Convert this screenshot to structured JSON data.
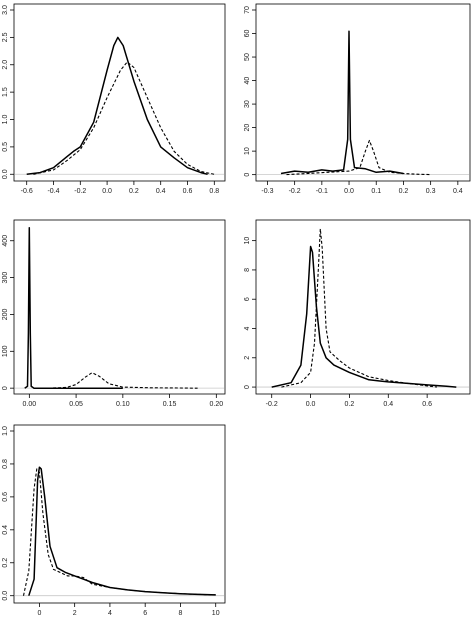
{
  "chart_data": [
    {
      "type": "line",
      "title": "",
      "xlabel": "",
      "ylabel": "",
      "xlim": [
        -0.65,
        0.85
      ],
      "ylim": [
        -0.05,
        3.0
      ],
      "xticks": [
        "-0.6",
        "-0.4",
        "-0.2",
        "0.0",
        "0.2",
        "0.4",
        "0.6",
        "0.8"
      ],
      "xtick_values": [
        -0.6,
        -0.4,
        -0.2,
        0.0,
        0.2,
        0.4,
        0.6,
        0.8
      ],
      "yticks": [
        "0.0",
        "0.5",
        "1.0",
        "1.5",
        "2.0",
        "2.5",
        "3.0"
      ],
      "ytick_values": [
        0,
        0.5,
        1.0,
        1.5,
        2.0,
        2.5,
        3.0
      ],
      "grid": false,
      "series": [
        {
          "style": "solid",
          "x": [
            -0.6,
            -0.5,
            -0.4,
            -0.3,
            -0.25,
            -0.2,
            -0.1,
            0.0,
            0.05,
            0.08,
            0.12,
            0.2,
            0.3,
            0.4,
            0.5,
            0.6,
            0.7,
            0.75
          ],
          "y": [
            0.0,
            0.03,
            0.12,
            0.32,
            0.42,
            0.5,
            0.95,
            1.9,
            2.35,
            2.5,
            2.35,
            1.7,
            1.0,
            0.5,
            0.3,
            0.12,
            0.03,
            0.0
          ]
        },
        {
          "style": "dashed",
          "x": [
            -0.55,
            -0.4,
            -0.3,
            -0.2,
            -0.1,
            0.0,
            0.1,
            0.15,
            0.2,
            0.3,
            0.4,
            0.5,
            0.6,
            0.7,
            0.8
          ],
          "y": [
            0.0,
            0.08,
            0.25,
            0.45,
            0.85,
            1.4,
            1.9,
            2.05,
            1.95,
            1.4,
            0.85,
            0.42,
            0.18,
            0.05,
            0.0
          ]
        }
      ]
    },
    {
      "type": "line",
      "title": "",
      "xlabel": "",
      "ylabel": "",
      "xlim": [
        -0.32,
        0.43
      ],
      "ylim": [
        -1,
        70
      ],
      "xticks": [
        "-0.3",
        "-0.2",
        "-0.1",
        "0.0",
        "0.1",
        "0.2",
        "0.3",
        "0.4"
      ],
      "xtick_values": [
        -0.3,
        -0.2,
        -0.1,
        0.0,
        0.1,
        0.2,
        0.3,
        0.4
      ],
      "yticks": [
        "0",
        "10",
        "20",
        "30",
        "40",
        "50",
        "60",
        "70"
      ],
      "ytick_values": [
        0,
        10,
        20,
        30,
        40,
        50,
        60,
        70
      ],
      "grid": false,
      "series": [
        {
          "style": "solid",
          "x": [
            -0.25,
            -0.2,
            -0.15,
            -0.1,
            -0.06,
            -0.02,
            -0.005,
            0.0,
            0.005,
            0.02,
            0.06,
            0.1,
            0.15,
            0.2
          ],
          "y": [
            0.5,
            1.5,
            1.0,
            2.0,
            1.5,
            2.0,
            15,
            61,
            15,
            3,
            2.5,
            1.0,
            1.5,
            0.5
          ]
        },
        {
          "style": "dashed",
          "x": [
            -0.23,
            -0.15,
            -0.08,
            0.0,
            0.04,
            0.06,
            0.075,
            0.09,
            0.11,
            0.15,
            0.2,
            0.25,
            0.3
          ],
          "y": [
            0.0,
            0.5,
            1.0,
            1.5,
            3.0,
            10,
            14.5,
            10,
            3,
            1.0,
            0.5,
            0.2,
            0.0
          ]
        }
      ]
    },
    {
      "type": "line",
      "title": "",
      "xlabel": "",
      "ylabel": "",
      "xlim": [
        -0.01,
        0.205
      ],
      "ylim": [
        -5,
        440
      ],
      "xticks": [
        "0.00",
        "0.05",
        "0.10",
        "0.15",
        "0.20"
      ],
      "xtick_values": [
        0.0,
        0.05,
        0.1,
        0.15,
        0.2
      ],
      "yticks": [
        "0",
        "100",
        "200",
        "300",
        "400"
      ],
      "ytick_values": [
        0,
        100,
        200,
        300,
        400
      ],
      "grid": false,
      "series": [
        {
          "style": "solid",
          "x": [
            -0.005,
            -0.002,
            -0.001,
            0.0,
            0.001,
            0.002,
            0.005,
            0.05,
            0.1
          ],
          "y": [
            0,
            5,
            150,
            435,
            150,
            5,
            0,
            0,
            0
          ]
        },
        {
          "style": "dashed",
          "x": [
            0.02,
            0.04,
            0.05,
            0.06,
            0.067,
            0.075,
            0.085,
            0.1,
            0.13,
            0.16,
            0.18
          ],
          "y": [
            0,
            2,
            10,
            30,
            42,
            32,
            12,
            3,
            1,
            0.5,
            0
          ]
        }
      ]
    },
    {
      "type": "line",
      "title": "",
      "xlabel": "",
      "ylabel": "",
      "xlim": [
        -0.25,
        0.8
      ],
      "ylim": [
        -0.2,
        11
      ],
      "xticks": [
        "-0.2",
        "0.0",
        "0.2",
        "0.4",
        "0.6"
      ],
      "xtick_values": [
        -0.2,
        0.0,
        0.2,
        0.4,
        0.6
      ],
      "yticks": [
        "0",
        "2",
        "4",
        "6",
        "8",
        "10"
      ],
      "ytick_values": [
        0,
        2,
        4,
        6,
        8,
        10
      ],
      "grid": false,
      "series": [
        {
          "style": "solid",
          "x": [
            -0.2,
            -0.1,
            -0.05,
            -0.02,
            0.0,
            0.01,
            0.03,
            0.05,
            0.08,
            0.12,
            0.2,
            0.3,
            0.4,
            0.5,
            0.6,
            0.7,
            0.75
          ],
          "y": [
            0.0,
            0.3,
            1.5,
            5.0,
            9.6,
            9.2,
            5.5,
            3.0,
            2.0,
            1.5,
            1.0,
            0.5,
            0.35,
            0.25,
            0.15,
            0.05,
            0.0
          ]
        },
        {
          "style": "dashed",
          "x": [
            -0.15,
            -0.05,
            0.0,
            0.02,
            0.04,
            0.05,
            0.06,
            0.08,
            0.1,
            0.15,
            0.2,
            0.3,
            0.4,
            0.5,
            0.6,
            0.65
          ],
          "y": [
            0.0,
            0.3,
            1.0,
            3.0,
            8.0,
            10.8,
            9.5,
            4.0,
            2.4,
            1.8,
            1.3,
            0.7,
            0.45,
            0.25,
            0.08,
            0.0
          ]
        }
      ]
    },
    {
      "type": "line",
      "title": "",
      "xlabel": "",
      "ylabel": "",
      "xlim": [
        -1.1,
        10.3
      ],
      "ylim": [
        -0.02,
        1.0
      ],
      "xticks": [
        "0",
        "2",
        "4",
        "6",
        "8",
        "10"
      ],
      "xtick_values": [
        0,
        2,
        4,
        6,
        8,
        10
      ],
      "yticks": [
        "0.0",
        "0.2",
        "0.4",
        "0.6",
        "0.8",
        "1.0"
      ],
      "ytick_values": [
        0,
        0.2,
        0.4,
        0.6,
        0.8,
        1.0
      ],
      "grid": false,
      "series": [
        {
          "style": "solid",
          "x": [
            -0.6,
            -0.3,
            -0.1,
            0.0,
            0.1,
            0.3,
            0.6,
            1.0,
            1.5,
            2.0,
            2.5,
            3.0,
            4.0,
            5.0,
            6.0,
            7.0,
            8.0,
            9.0,
            10.0
          ],
          "y": [
            0.0,
            0.1,
            0.7,
            0.78,
            0.77,
            0.6,
            0.3,
            0.17,
            0.14,
            0.12,
            0.1,
            0.08,
            0.05,
            0.035,
            0.025,
            0.018,
            0.012,
            0.008,
            0.005
          ]
        },
        {
          "style": "dashed",
          "x": [
            -0.9,
            -0.6,
            -0.3,
            -0.15,
            0.0,
            0.2,
            0.5,
            0.8,
            1.2,
            1.6,
            2.0,
            2.5,
            3.0,
            4.0,
            5.0,
            6.0,
            7.0,
            8.0,
            9.0,
            10.0
          ],
          "y": [
            0.0,
            0.15,
            0.65,
            0.77,
            0.75,
            0.5,
            0.25,
            0.16,
            0.14,
            0.12,
            0.12,
            0.11,
            0.07,
            0.05,
            0.035,
            0.025,
            0.018,
            0.012,
            0.008,
            0.005
          ]
        }
      ]
    }
  ]
}
